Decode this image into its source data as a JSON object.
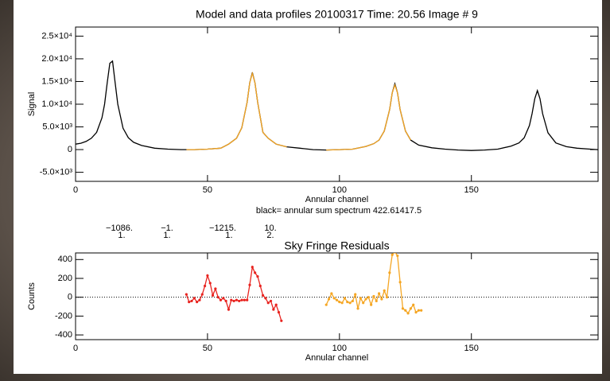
{
  "chart_data": [
    {
      "type": "line",
      "title": "Model and data profiles      20100317   Time: 20.56  Image #   9",
      "xlabel": "Annular channel",
      "ylabel": "Signal",
      "annotations": [
        "black= annular sum spectrum  422.61417.5",
        "−1086.",
        "1.",
        "−1.",
        "1.",
        "−1215.",
        "1.",
        "10.",
        "2."
      ],
      "xlim": [
        0,
        198
      ],
      "xticks": [
        0,
        50,
        100,
        150
      ],
      "ylim": [
        -7000,
        27000
      ],
      "yticks": [
        {
          "value": -5000,
          "label": "-5.0×10³"
        },
        0,
        {
          "value": 5000,
          "label": "5.0×10³"
        },
        {
          "value": 10000,
          "label": "1.0×10⁴"
        },
        {
          "value": 15000,
          "label": "1.5×10⁴"
        },
        {
          "value": 20000,
          "label": "2.0×10⁴"
        },
        {
          "value": 25000,
          "label": "2.5×10⁴"
        }
      ],
      "series": [
        {
          "color": "#000000",
          "x": [
            0,
            2,
            4,
            6,
            8,
            10,
            11,
            12,
            13,
            14,
            15,
            16,
            18,
            20,
            22,
            25,
            30,
            35,
            40,
            45,
            50,
            55,
            58,
            61,
            63,
            65,
            66,
            67,
            68,
            69,
            71,
            73,
            76,
            80,
            85,
            90,
            95,
            100,
            105,
            110,
            113,
            115,
            117,
            119,
            120,
            121,
            122,
            123,
            125,
            127,
            130,
            135,
            140,
            145,
            150,
            155,
            160,
            165,
            168,
            170,
            172,
            173,
            174,
            175,
            176,
            177,
            179,
            182,
            186,
            190,
            195,
            198
          ],
          "values": [
            1200,
            1400,
            1800,
            2500,
            3800,
            7000,
            10000,
            14700,
            19000,
            19500,
            14700,
            10000,
            4700,
            2600,
            1600,
            900,
            300,
            100,
            0,
            0,
            100,
            300,
            1200,
            2500,
            4800,
            10400,
            14700,
            17000,
            14700,
            10400,
            3800,
            2500,
            1200,
            600,
            300,
            0,
            -100,
            0,
            100,
            700,
            1300,
            2100,
            4100,
            8800,
            12500,
            14500,
            12500,
            8800,
            4100,
            2100,
            1000,
            400,
            100,
            -100,
            -200,
            -100,
            100,
            760,
            1470,
            2600,
            5300,
            7900,
            11200,
            13000,
            11200,
            7900,
            3700,
            1470,
            640,
            300,
            100,
            0
          ]
        },
        {
          "color": "#f5a623",
          "x": [
            42,
            45,
            50,
            55,
            58,
            61,
            63,
            65,
            66,
            67,
            68,
            69,
            71,
            73,
            76,
            80
          ],
          "values": [
            0,
            0,
            100,
            300,
            1200,
            2500,
            4800,
            10400,
            14700,
            16800,
            14700,
            10400,
            3800,
            2500,
            1200,
            600
          ]
        },
        {
          "color": "#f5a623",
          "x": [
            95,
            100,
            105,
            110,
            113,
            115,
            117,
            119,
            120,
            121,
            122,
            123,
            125,
            127
          ],
          "values": [
            -100,
            0,
            100,
            700,
            1300,
            2100,
            4100,
            8800,
            12500,
            14200,
            12500,
            8800,
            4100,
            2100
          ]
        }
      ]
    },
    {
      "type": "line",
      "markers": true,
      "zero_line": true,
      "title": "Sky Fringe Residuals",
      "xlabel": "Annular channel",
      "ylabel": "Counts",
      "xlim": [
        0,
        198
      ],
      "xticks": [
        0,
        50,
        100,
        150
      ],
      "ylim": [
        -450,
        470
      ],
      "yticks": [
        -400,
        -200,
        0,
        200,
        400
      ],
      "series": [
        {
          "color": "#e8231f",
          "x": [
            42,
            43,
            44,
            45,
            46,
            47,
            48,
            49,
            50,
            51,
            52,
            53,
            54,
            55,
            56,
            57,
            58,
            59,
            60,
            61,
            62,
            63,
            64,
            65,
            66,
            67,
            68,
            69,
            70,
            71,
            72,
            73,
            74,
            75,
            76,
            77,
            78
          ],
          "values": [
            30,
            -50,
            -40,
            -10,
            -50,
            -30,
            30,
            120,
            230,
            150,
            20,
            90,
            0,
            -30,
            -10,
            -40,
            -130,
            -30,
            -40,
            -30,
            -40,
            -30,
            -30,
            -30,
            130,
            320,
            260,
            220,
            120,
            20,
            -10,
            -60,
            -40,
            -130,
            -80,
            -160,
            -250
          ]
        },
        {
          "color": "#f5a623",
          "x": [
            95,
            96,
            97,
            98,
            99,
            100,
            101,
            102,
            103,
            104,
            105,
            106,
            107,
            108,
            109,
            110,
            111,
            112,
            113,
            114,
            115,
            116,
            117,
            118,
            119,
            120,
            121,
            122,
            123,
            124,
            125,
            126,
            127,
            128,
            129,
            130,
            131
          ],
          "values": [
            -80,
            -20,
            40,
            -10,
            -30,
            -50,
            -60,
            -10,
            -50,
            -60,
            -40,
            30,
            -120,
            -10,
            -60,
            -20,
            0,
            -80,
            10,
            -40,
            40,
            -20,
            70,
            0,
            260,
            450,
            480,
            440,
            160,
            -120,
            -140,
            -170,
            -120,
            -80,
            -160,
            -140,
            -140
          ]
        }
      ]
    }
  ]
}
